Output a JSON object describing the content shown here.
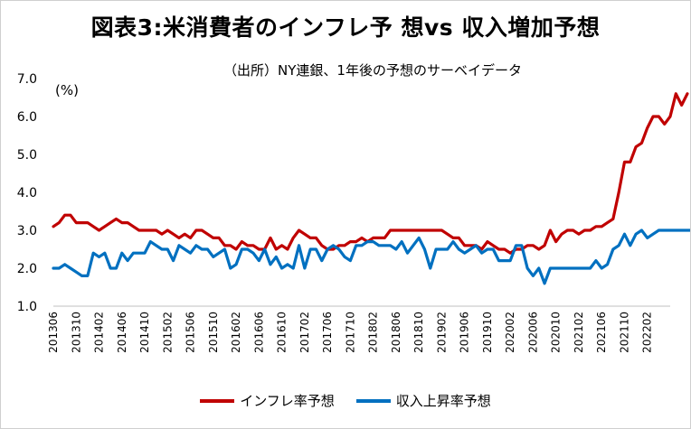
{
  "chart_data": {
    "type": "line",
    "title": "図表3:米消費者のインフレ予 想vs 収入増加予想",
    "subtitle": "（出所）NY連銀、1年後の予想のサーベイデータ",
    "unit_label": "(%)",
    "ylim": [
      1.0,
      7.0
    ],
    "yticks": [
      "1.0",
      "2.0",
      "3.0",
      "4.0",
      "5.0",
      "6.0",
      "7.0"
    ],
    "x_start": "2013-06",
    "x_end": "2022-06",
    "xtick_labels": [
      "201306",
      "201310",
      "201402",
      "201406",
      "201410",
      "201502",
      "201506",
      "201510",
      "201602",
      "201606",
      "201610",
      "201702",
      "201706",
      "201710",
      "201802",
      "201806",
      "201810",
      "201902",
      "201906",
      "201910",
      "202002",
      "202006",
      "202010",
      "202102",
      "202106",
      "202110",
      "202202"
    ],
    "grid": false,
    "legend_position": "bottom",
    "series": [
      {
        "name": "インフレ率予想",
        "color": "#c00000",
        "values": [
          3.1,
          3.2,
          3.4,
          3.4,
          3.2,
          3.2,
          3.2,
          3.1,
          3.0,
          3.1,
          3.2,
          3.3,
          3.2,
          3.2,
          3.1,
          3.0,
          3.0,
          3.0,
          3.0,
          2.9,
          3.0,
          2.9,
          2.8,
          2.9,
          2.8,
          3.0,
          3.0,
          2.9,
          2.8,
          2.8,
          2.6,
          2.6,
          2.5,
          2.7,
          2.6,
          2.6,
          2.5,
          2.5,
          2.8,
          2.5,
          2.6,
          2.5,
          2.8,
          3.0,
          2.9,
          2.8,
          2.8,
          2.6,
          2.5,
          2.5,
          2.6,
          2.6,
          2.7,
          2.7,
          2.8,
          2.7,
          2.8,
          2.8,
          2.8,
          3.0,
          3.0,
          3.0,
          3.0,
          3.0,
          3.0,
          3.0,
          3.0,
          3.0,
          3.0,
          2.9,
          2.8,
          2.8,
          2.6,
          2.6,
          2.6,
          2.5,
          2.7,
          2.6,
          2.5,
          2.5,
          2.4,
          2.5,
          2.5,
          2.6,
          2.6,
          2.5,
          2.6,
          3.0,
          2.7,
          2.9,
          3.0,
          3.0,
          2.9,
          3.0,
          3.0,
          3.1,
          3.1,
          3.2,
          3.3,
          4.0,
          4.8,
          4.8,
          5.2,
          5.3,
          5.7,
          6.0,
          6.0,
          5.8,
          6.0,
          6.6,
          6.3,
          6.6
        ]
      },
      {
        "name": "収入上昇率予想",
        "color": "#0070c0",
        "values": [
          2.0,
          2.0,
          2.1,
          2.0,
          1.9,
          1.8,
          1.8,
          2.4,
          2.3,
          2.4,
          2.0,
          2.0,
          2.4,
          2.2,
          2.4,
          2.4,
          2.4,
          2.7,
          2.6,
          2.5,
          2.5,
          2.2,
          2.6,
          2.5,
          2.4,
          2.6,
          2.5,
          2.5,
          2.3,
          2.4,
          2.5,
          2.0,
          2.1,
          2.5,
          2.5,
          2.4,
          2.2,
          2.5,
          2.1,
          2.3,
          2.0,
          2.1,
          2.0,
          2.6,
          2.0,
          2.5,
          2.5,
          2.2,
          2.5,
          2.6,
          2.5,
          2.3,
          2.2,
          2.6,
          2.6,
          2.7,
          2.7,
          2.6,
          2.6,
          2.6,
          2.5,
          2.7,
          2.4,
          2.6,
          2.8,
          2.5,
          2.0,
          2.5,
          2.5,
          2.5,
          2.7,
          2.5,
          2.4,
          2.5,
          2.6,
          2.4,
          2.5,
          2.5,
          2.2,
          2.2,
          2.2,
          2.6,
          2.6,
          2.0,
          1.8,
          2.0,
          1.6,
          2.0,
          2.0,
          2.0,
          2.0,
          2.0,
          2.0,
          2.0,
          2.0,
          2.2,
          2.0,
          2.1,
          2.5,
          2.6,
          2.9,
          2.6,
          2.9,
          3.0,
          2.8,
          2.9,
          3.0,
          3.0,
          3.0,
          3.0,
          3.0,
          3.0,
          3.0
        ]
      }
    ]
  }
}
